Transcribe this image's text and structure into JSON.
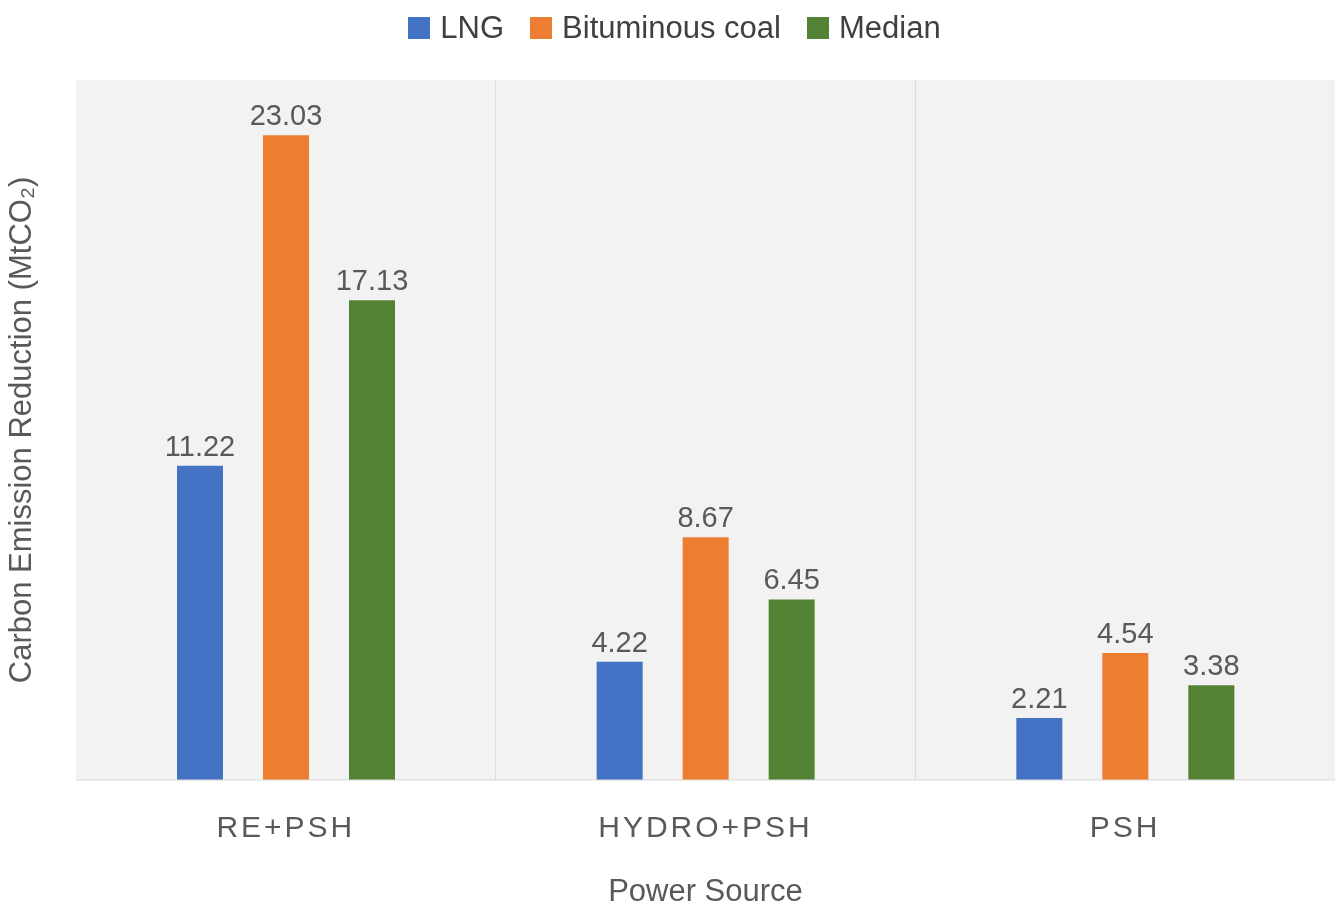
{
  "chart_data": {
    "type": "bar",
    "xlabel": "Power Source",
    "ylabel": "Carbon Emission Reduction (MtCO₂)",
    "categories": [
      "RE+PSH",
      "HYDRO+PSH",
      "PSH"
    ],
    "series": [
      {
        "name": "LNG",
        "color": "#4472c4",
        "values": [
          11.22,
          4.22,
          2.21
        ]
      },
      {
        "name": "Bituminous coal",
        "color": "#ed7d31",
        "values": [
          23.03,
          8.67,
          4.54
        ]
      },
      {
        "name": "Median",
        "color": "#548235",
        "values": [
          17.13,
          6.45,
          3.38
        ]
      }
    ],
    "ylim": [
      0,
      25
    ],
    "tick_labels": "x",
    "data_labels": true,
    "grid": "x",
    "legend": "top"
  }
}
